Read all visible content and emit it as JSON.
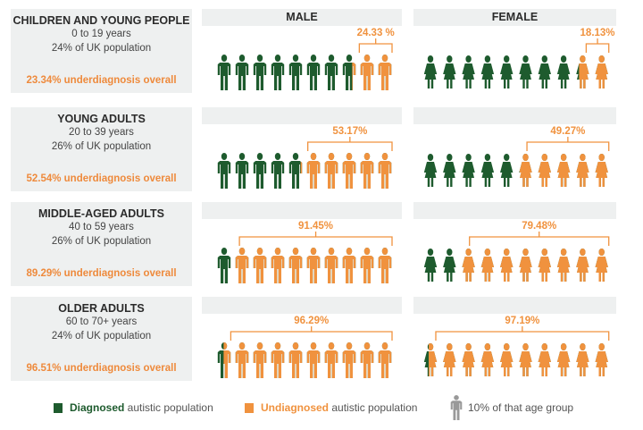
{
  "headers": {
    "male": "MALE",
    "female": "FEMALE"
  },
  "colors": {
    "diagnosed": "#1e5b2e",
    "undiagnosed": "#f0923e",
    "panel": "#eef0f0"
  },
  "chart_data": {
    "type": "pictogram",
    "unit": "10% of that age group",
    "groups": [
      {
        "title": "CHILDREN AND YOUNG PEOPLE",
        "ages": "0 to 19 years",
        "share": "24% of UK population",
        "overall": "23.34% underdiagnosis overall",
        "male": 24.33,
        "male_label": "24.33 %",
        "female": 18.13,
        "female_label": "18.13%"
      },
      {
        "title": "YOUNG ADULTS",
        "ages": "20 to 39 years",
        "share": "26% of UK population",
        "overall": "52.54% underdiagnosis overall",
        "male": 53.17,
        "male_label": "53.17%",
        "female": 49.27,
        "female_label": "49.27%"
      },
      {
        "title": "MIDDLE-AGED ADULTS",
        "ages": "40 to 59 years",
        "share": "26% of UK population",
        "overall": "89.29% underdiagnosis overall",
        "male": 91.45,
        "male_label": "91.45%",
        "female": 79.48,
        "female_label": "79.48%"
      },
      {
        "title": "OLDER ADULTS",
        "ages": "60 to 70+ years",
        "share": "24% of UK population",
        "overall": "96.51% underdiagnosis overall",
        "male": 96.29,
        "male_label": "96.29%",
        "female": 97.19,
        "female_label": "97.19%"
      }
    ]
  },
  "legend": {
    "diagnosed_bold": "Diagnosed",
    "diagnosed_rest": " autistic population",
    "undiagnosed_bold": "Undiagnosed",
    "undiagnosed_rest": " autistic population",
    "unit": "10% of that age group"
  }
}
